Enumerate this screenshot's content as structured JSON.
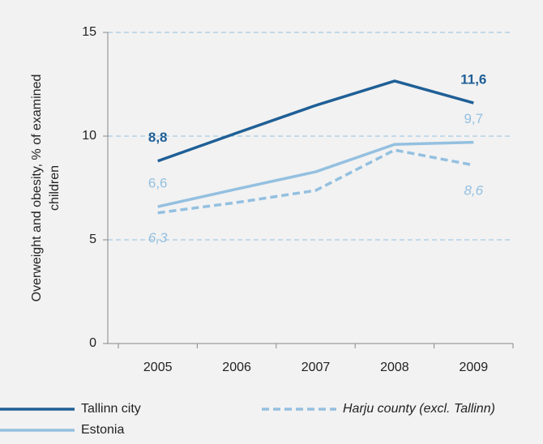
{
  "chart_data": {
    "type": "line",
    "ylabel": [
      "Overweight and obesity, % of examined",
      "children"
    ],
    "categories": [
      "2005",
      "2006",
      "2007",
      "2008",
      "2009"
    ],
    "series": [
      {
        "name": "Tallinn city",
        "color": "#1f5f96",
        "dashed": false,
        "values": [
          8.8,
          10.15,
          11.48,
          12.66,
          11.6
        ],
        "value_labels": [
          "8,8",
          null,
          null,
          null,
          "11,6"
        ]
      },
      {
        "name": "Harju county (excl. Tallinn)",
        "color": "#94c0e0",
        "dashed": true,
        "values": [
          6.3,
          6.8,
          7.38,
          9.33,
          8.6
        ],
        "value_labels": [
          "6,3",
          null,
          null,
          null,
          "8,6"
        ]
      },
      {
        "name": "Estonia",
        "color": "#94c0e0",
        "dashed": false,
        "values": [
          6.6,
          7.45,
          8.28,
          9.6,
          9.7
        ],
        "value_labels": [
          "6,6",
          null,
          null,
          null,
          "9,7"
        ]
      }
    ],
    "ylim": [
      0,
      15
    ],
    "yticks": [
      0,
      5,
      10,
      15
    ],
    "grid": true
  }
}
